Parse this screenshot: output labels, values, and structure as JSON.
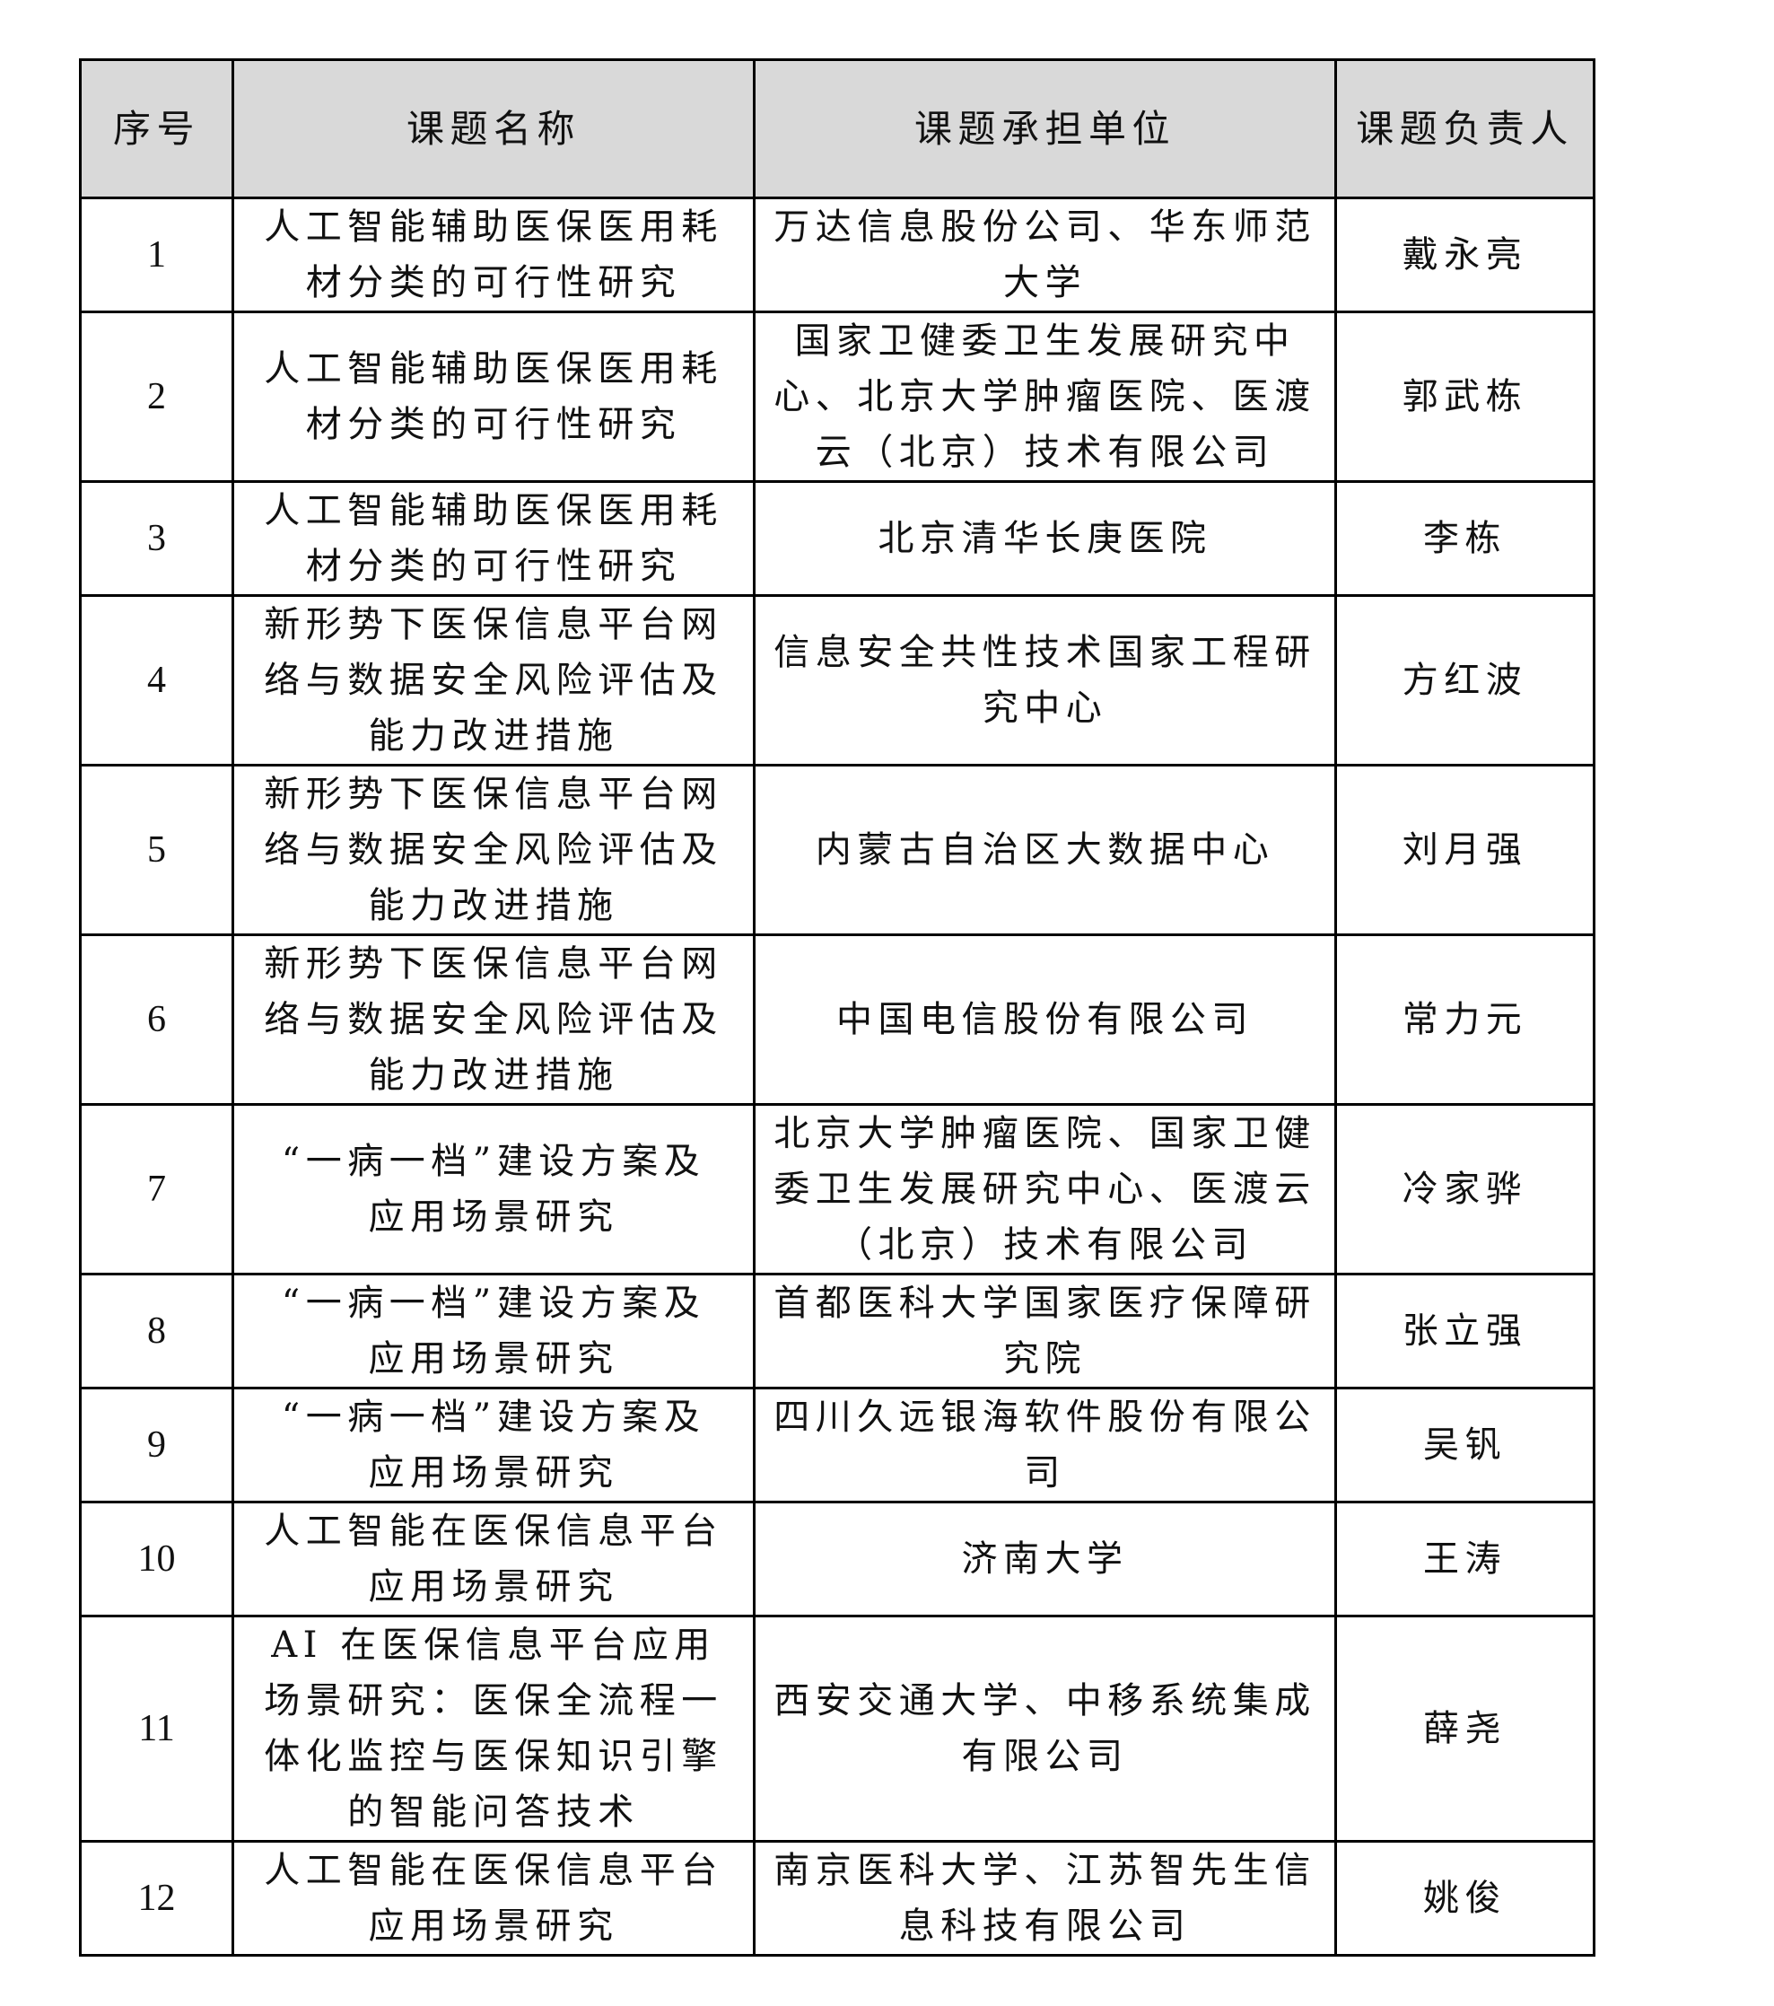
{
  "table": {
    "headers": [
      "序号",
      "课题名称",
      "课题承担单位",
      "课题负责人"
    ],
    "rows": [
      {
        "no": "1",
        "name": "人工智能辅助医保医用耗材分类的可行性研究",
        "unit": "万达信息股份公司、华东师范大学",
        "lead": "戴永亮"
      },
      {
        "no": "2",
        "name": "人工智能辅助医保医用耗材分类的可行性研究",
        "unit": "国家卫健委卫生发展研究中心、北京大学肿瘤医院、医渡云（北京）技术有限公司",
        "lead": "郭武栋"
      },
      {
        "no": "3",
        "name": "人工智能辅助医保医用耗材分类的可行性研究",
        "unit": "北京清华长庚医院",
        "lead": "李栋"
      },
      {
        "no": "4",
        "name": "新形势下医保信息平台网络与数据安全风险评估及能力改进措施",
        "unit": "信息安全共性技术国家工程研究中心",
        "lead": "方红波"
      },
      {
        "no": "5",
        "name": "新形势下医保信息平台网络与数据安全风险评估及能力改进措施",
        "unit": "内蒙古自治区大数据中心",
        "lead": "刘月强"
      },
      {
        "no": "6",
        "name": "新形势下医保信息平台网络与数据安全风险评估及能力改进措施",
        "unit": "中国电信股份有限公司",
        "lead": "常力元"
      },
      {
        "no": "7",
        "name": "“一病一档”建设方案及应用场景研究",
        "unit": "北京大学肿瘤医院、国家卫健委卫生发展研究中心、医渡云（北京）技术有限公司",
        "lead": "冷家骅"
      },
      {
        "no": "8",
        "name": "“一病一档”建设方案及应用场景研究",
        "unit": "首都医科大学国家医疗保障研究院",
        "lead": "张立强"
      },
      {
        "no": "9",
        "name": "“一病一档”建设方案及应用场景研究",
        "unit": "四川久远银海软件股份有限公司",
        "lead": "吴钒"
      },
      {
        "no": "10",
        "name": "人工智能在医保信息平台应用场景研究",
        "unit": "济南大学",
        "lead": "王涛"
      },
      {
        "no": "11",
        "name": "AI 在医保信息平台应用场景研究：医保全流程一体化监控与医保知识引擎的智能问答技术",
        "unit": "西安交通大学、中移系统集成有限公司",
        "lead": "薛尧"
      },
      {
        "no": "12",
        "name": "人工智能在医保信息平台应用场景研究",
        "unit": "南京医科大学、江苏智先生信息科技有限公司",
        "lead": "姚俊"
      }
    ]
  }
}
